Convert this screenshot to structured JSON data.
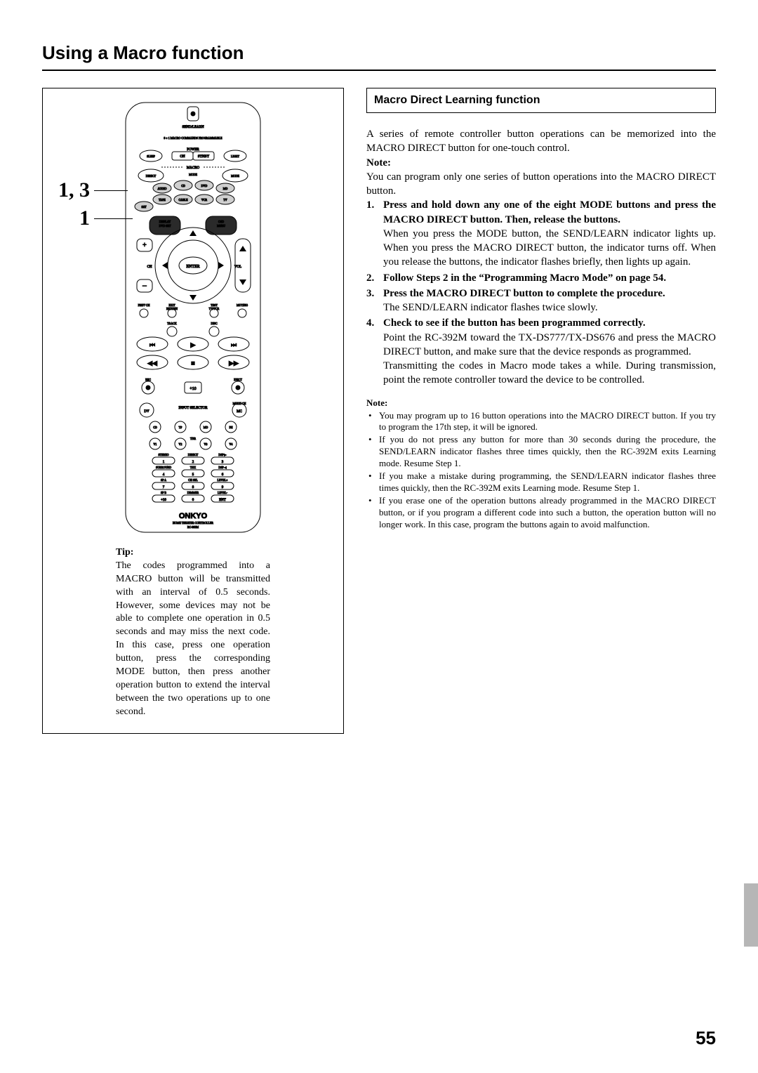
{
  "page": {
    "title": "Using a Macro function",
    "number": "55"
  },
  "callouts": {
    "a": "1, 3",
    "b": "1"
  },
  "tip": {
    "heading": "Tip:",
    "body": "The codes programmed into a MACRO button will be transmitted with an interval of 0.5 seconds. However, some devices may not be able to complete one operation in 0.5 seconds and may miss the next code. In this case, press one operation button, press the corresponding MODE button, then press another operation button to extend the interval between the two operations up to one second."
  },
  "section": {
    "heading": "Macro Direct Learning function",
    "intro": "A series of remote controller button operations can be memorized into the MACRO DIRECT button for one-touch control.",
    "note_label": "Note:",
    "note_body": "You can program only one series of button operations into the MACRO DIRECT button.",
    "steps": [
      {
        "head": "Press and hold down any one of the eight MODE buttons and press the MACRO DIRECT button. Then, release the buttons.",
        "body": "When you press the MODE button, the SEND/LEARN indicator lights up. When you press the MACRO DIRECT button, the indicator turns off. When you release the buttons, the indicator flashes briefly, then lights up again."
      },
      {
        "head": "Follow Steps 2 in the “Programming Macro Mode” on page 54.",
        "body": ""
      },
      {
        "head": "Press the MACRO DIRECT button to complete the procedure.",
        "body": "The SEND/LEARN indicator flashes twice slowly."
      },
      {
        "head": "Check to see if the button has been programmed correctly.",
        "body": "Point the RC-392M toward the TX-DS777/TX-DS676 and press the MACRO DIRECT button, and make sure that the device responds as programmed.\nTransmitting the codes in Macro mode takes a while. During transmission, point the remote controller toward the device to be controlled."
      }
    ],
    "notes_label": "Note:",
    "notes": [
      "You may program up to 16 button operations into the MACRO DIRECT button. If you try to program the 17th step, it will be ignored.",
      "If you do not press any button for more than 30 seconds during the procedure, the SEND/LEARN indicator flashes three times quickly, then the RC-392M exits Learning mode. Resume Step 1.",
      "If you make a mistake during programming, the SEND/LEARN indicator flashes three times quickly, then the RC-392M exits Learning mode. Resume Step 1.",
      "If you erase one of the operation buttons already programmed in the MACRO DIRECT button, or if you program a different code into such a button, the operation button will no longer work. In this case, program the buttons again to avoid malfunction."
    ]
  },
  "remote": {
    "brand": "ONKYO",
    "model_line1": "HOME THEATER CONTROLLER",
    "model_line2": "RC-392M",
    "labels": {
      "send_learn": "SEND/LEARN",
      "macro_prog": "8 + 1 MACRO COMMANDS PROGRAMMABLE",
      "power": "POWER",
      "on": "ON",
      "stnby": "STNBY",
      "sleep": "SLEEP",
      "light": "LIGHT",
      "macro": "MACRO",
      "direct": "DIRECT",
      "mode_lbl": "MODE",
      "mode": "MODE",
      "audio": "AUDIO",
      "cd": "CD",
      "dvd": "DVD",
      "md": "MD",
      "tape": "TAPE",
      "cable": "CABLE",
      "vcr": "VCR",
      "tv": "TV",
      "sat": "SAT",
      "display": "DISPLAY\nDVD SET",
      "osd": "OSD\nMENU",
      "enter": "ENTER",
      "ch": "CH",
      "vol": "VOL",
      "prevch": "PREV CH",
      "exit": "EXIT\nRETURN",
      "test": "TEST\nTV/VCR",
      "muting": "MUTING",
      "track": "TRACK",
      "disc": "DISC",
      "rec": "REC",
      "eject": "EJECT",
      "input_selector": "INPUT SELECTOR",
      "multi_ch": "MULTI CH",
      "tnr": "TNR",
      "row_labels": [
        "STEREO",
        "DIRECT",
        "DSP ▶",
        "SURROUND",
        "THX",
        "DSP ◀",
        "SP A",
        "CH SEL",
        "LEVEL+",
        "SP B",
        "DIMMER",
        "LEVEL-"
      ],
      "num_labels": [
        "1",
        "2",
        "3",
        "4",
        "5",
        "6",
        "7",
        "8",
        "9",
        "+10",
        "0",
        "ENT"
      ],
      "sel_letters": [
        "DV",
        "MC",
        "CD",
        "TP",
        "MD",
        "PH",
        "V1",
        "V2",
        "V3",
        "V4"
      ]
    },
    "colors": {
      "body": "#ffffff",
      "stroke": "#000000",
      "dark_fill": "#2a2a2a",
      "grey": "#cfcfcf"
    }
  }
}
